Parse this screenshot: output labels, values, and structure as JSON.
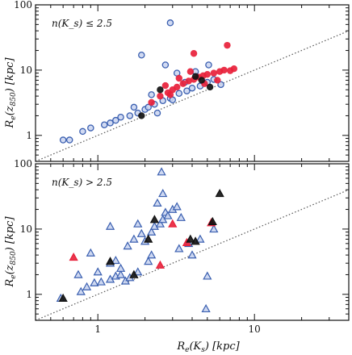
{
  "chart_data": [
    {
      "type": "scatter",
      "xscale": "log",
      "yscale": "log",
      "xlim": [
        0.4,
        40
      ],
      "ylim": [
        0.4,
        100
      ],
      "annotation": "n(K_s) ≤ 2.5",
      "xlabel": "",
      "ylabel": "R_e(z_850) [kpc]",
      "x_ticks": [
        "1",
        "10"
      ],
      "y_ticks": [
        "1",
        "10",
        "100"
      ],
      "reference_line": "one-to-one (dotted)",
      "colors": {
        "blue": "#4a6fc0",
        "red": "#e8203a",
        "black": "#111111"
      },
      "series": [
        {
          "marker": "circle",
          "color": "blue",
          "points": [
            {
              "x": 0.6,
              "y": 0.85
            },
            {
              "x": 0.66,
              "y": 0.85
            },
            {
              "x": 0.8,
              "y": 1.15
            },
            {
              "x": 0.9,
              "y": 1.3
            },
            {
              "x": 1.1,
              "y": 1.45
            },
            {
              "x": 1.2,
              "y": 1.55
            },
            {
              "x": 1.3,
              "y": 1.7
            },
            {
              "x": 1.4,
              "y": 1.9
            },
            {
              "x": 1.6,
              "y": 2.0
            },
            {
              "x": 1.8,
              "y": 2.2
            },
            {
              "x": 2.0,
              "y": 2.5
            },
            {
              "x": 2.1,
              "y": 2.7
            },
            {
              "x": 2.3,
              "y": 3.0
            },
            {
              "x": 2.6,
              "y": 3.4
            },
            {
              "x": 2.9,
              "y": 3.7
            },
            {
              "x": 3.3,
              "y": 4.4
            },
            {
              "x": 3.7,
              "y": 4.8
            },
            {
              "x": 4.0,
              "y": 5.3
            },
            {
              "x": 4.5,
              "y": 5.7
            },
            {
              "x": 5.0,
              "y": 6.5
            },
            {
              "x": 5.5,
              "y": 7.2
            },
            {
              "x": 6.1,
              "y": 6.0
            },
            {
              "x": 1.9,
              "y": 17.0
            },
            {
              "x": 2.9,
              "y": 53.0
            },
            {
              "x": 2.7,
              "y": 12.0
            },
            {
              "x": 3.2,
              "y": 9.0
            },
            {
              "x": 3.6,
              "y": 6.5
            },
            {
              "x": 4.2,
              "y": 9.5
            },
            {
              "x": 5.1,
              "y": 12.0
            },
            {
              "x": 2.2,
              "y": 4.2
            },
            {
              "x": 1.7,
              "y": 2.7
            },
            {
              "x": 2.4,
              "y": 2.2
            },
            {
              "x": 3.0,
              "y": 3.5
            }
          ]
        },
        {
          "marker": "circle",
          "color": "red",
          "points": [
            {
              "x": 2.2,
              "y": 3.2
            },
            {
              "x": 2.5,
              "y": 4.0
            },
            {
              "x": 2.8,
              "y": 4.5
            },
            {
              "x": 3.0,
              "y": 5.0
            },
            {
              "x": 3.2,
              "y": 5.5
            },
            {
              "x": 3.5,
              "y": 6.2
            },
            {
              "x": 3.8,
              "y": 6.8
            },
            {
              "x": 4.1,
              "y": 7.2
            },
            {
              "x": 4.4,
              "y": 7.8
            },
            {
              "x": 4.7,
              "y": 8.2
            },
            {
              "x": 5.0,
              "y": 8.6
            },
            {
              "x": 5.5,
              "y": 9.0
            },
            {
              "x": 6.0,
              "y": 9.5
            },
            {
              "x": 6.4,
              "y": 10.0
            },
            {
              "x": 7.0,
              "y": 9.8
            },
            {
              "x": 7.4,
              "y": 10.5
            },
            {
              "x": 6.7,
              "y": 24.0
            },
            {
              "x": 4.1,
              "y": 18.0
            },
            {
              "x": 2.7,
              "y": 5.8
            },
            {
              "x": 3.3,
              "y": 7.5
            },
            {
              "x": 3.9,
              "y": 9.5
            },
            {
              "x": 4.8,
              "y": 6.2
            },
            {
              "x": 5.8,
              "y": 7.0
            },
            {
              "x": 2.9,
              "y": 4.2
            }
          ]
        },
        {
          "marker": "circle",
          "color": "black",
          "points": [
            {
              "x": 2.5,
              "y": 5.0
            },
            {
              "x": 4.2,
              "y": 8.0
            },
            {
              "x": 4.6,
              "y": 7.0
            },
            {
              "x": 1.9,
              "y": 2.0
            },
            {
              "x": 5.2,
              "y": 5.5
            }
          ]
        }
      ]
    },
    {
      "type": "scatter",
      "xscale": "log",
      "yscale": "log",
      "xlim": [
        0.4,
        40
      ],
      "ylim": [
        0.4,
        100
      ],
      "annotation": "n(K_s) > 2.5",
      "xlabel": "R_e(K_s) [kpc]",
      "ylabel": "R_e(z_850) [kpc]",
      "x_ticks": [
        "1",
        "10"
      ],
      "y_ticks": [
        "1",
        "10",
        "100"
      ],
      "reference_line": "one-to-one (dotted)",
      "series": [
        {
          "marker": "triangle",
          "color": "blue",
          "points": [
            {
              "x": 0.58,
              "y": 0.87
            },
            {
              "x": 0.78,
              "y": 1.1
            },
            {
              "x": 0.85,
              "y": 1.3
            },
            {
              "x": 0.95,
              "y": 1.5
            },
            {
              "x": 1.05,
              "y": 1.55
            },
            {
              "x": 1.2,
              "y": 1.7
            },
            {
              "x": 1.3,
              "y": 1.9
            },
            {
              "x": 1.4,
              "y": 2.0
            },
            {
              "x": 1.5,
              "y": 1.6
            },
            {
              "x": 1.6,
              "y": 1.8
            },
            {
              "x": 1.8,
              "y": 2.2
            },
            {
              "x": 1.2,
              "y": 3.0
            },
            {
              "x": 1.3,
              "y": 3.3
            },
            {
              "x": 1.4,
              "y": 2.5
            },
            {
              "x": 1.55,
              "y": 5.5
            },
            {
              "x": 1.7,
              "y": 7.0
            },
            {
              "x": 1.9,
              "y": 8.5
            },
            {
              "x": 2.0,
              "y": 6.5
            },
            {
              "x": 2.2,
              "y": 9.0
            },
            {
              "x": 2.3,
              "y": 11.0
            },
            {
              "x": 2.5,
              "y": 12.0
            },
            {
              "x": 2.6,
              "y": 14.0
            },
            {
              "x": 2.7,
              "y": 18.0
            },
            {
              "x": 2.8,
              "y": 16.0
            },
            {
              "x": 3.0,
              "y": 20.0
            },
            {
              "x": 3.2,
              "y": 22.0
            },
            {
              "x": 3.4,
              "y": 15.0
            },
            {
              "x": 2.4,
              "y": 25.0
            },
            {
              "x": 2.55,
              "y": 75.0
            },
            {
              "x": 2.6,
              "y": 35.0
            },
            {
              "x": 1.2,
              "y": 11.0
            },
            {
              "x": 0.75,
              "y": 2.0
            },
            {
              "x": 1.0,
              "y": 2.2
            },
            {
              "x": 2.2,
              "y": 4.0
            },
            {
              "x": 2.1,
              "y": 3.2
            },
            {
              "x": 3.3,
              "y": 5.0
            },
            {
              "x": 3.8,
              "y": 6.0
            },
            {
              "x": 4.5,
              "y": 7.0
            },
            {
              "x": 5.5,
              "y": 10.0
            },
            {
              "x": 4.0,
              "y": 4.0
            },
            {
              "x": 5.0,
              "y": 1.9
            },
            {
              "x": 4.9,
              "y": 0.6
            },
            {
              "x": 0.9,
              "y": 4.3
            },
            {
              "x": 1.8,
              "y": 12.0
            }
          ]
        },
        {
          "marker": "triangle",
          "color": "red",
          "points": [
            {
              "x": 3.0,
              "y": 12.0
            },
            {
              "x": 3.7,
              "y": 6.2
            },
            {
              "x": 5.3,
              "y": 12.5
            },
            {
              "x": 2.5,
              "y": 2.8
            },
            {
              "x": 0.7,
              "y": 3.7
            }
          ]
        },
        {
          "marker": "triangle",
          "color": "black",
          "points": [
            {
              "x": 0.6,
              "y": 0.87
            },
            {
              "x": 1.2,
              "y": 3.2
            },
            {
              "x": 2.1,
              "y": 7.0
            },
            {
              "x": 3.9,
              "y": 7.0
            },
            {
              "x": 4.2,
              "y": 6.5
            },
            {
              "x": 6.0,
              "y": 35.0
            },
            {
              "x": 5.4,
              "y": 13.0
            },
            {
              "x": 2.3,
              "y": 14.0
            },
            {
              "x": 1.7,
              "y": 2.0
            }
          ]
        }
      ]
    }
  ]
}
